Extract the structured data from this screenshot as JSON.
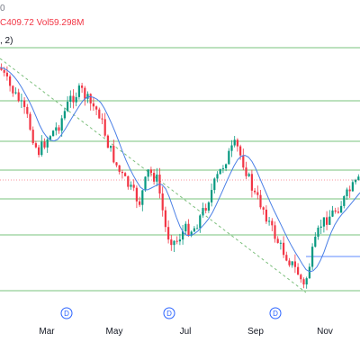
{
  "legend": {
    "top": "0",
    "ohlc_close": "C409.72",
    "ohlc_vol": "Vol59.298M",
    "ma": ", 2)"
  },
  "colors": {
    "up": "#089981",
    "down": "#f23645",
    "ma": "#4a7fe6",
    "horizontal_green": "#4caf50",
    "horizontal_blue": "#2962ff",
    "trend_dash": "#7cbf7c",
    "dotted_red": "#f23645"
  },
  "events": [
    {
      "label": "D"
    },
    {
      "label": "D"
    },
    {
      "label": "D"
    }
  ],
  "chart_data": {
    "type": "candlestick",
    "x_axis": [
      "Mar",
      "May",
      "Jul",
      "Sep",
      "Nov"
    ],
    "x_axis_positions_note": "tick labels only"
  }
}
